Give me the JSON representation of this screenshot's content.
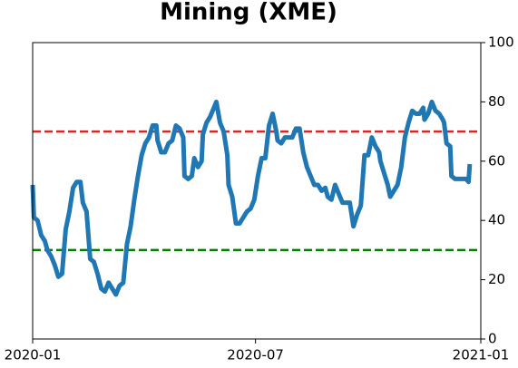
{
  "chart_data": {
    "type": "line",
    "title": "Mining (XME)",
    "x": [
      0,
      1,
      4,
      7,
      10,
      12,
      15,
      18,
      21,
      24,
      27,
      30,
      33,
      36,
      39,
      41,
      44,
      47,
      50,
      53,
      56,
      59,
      62,
      65,
      68,
      71,
      74,
      77,
      80,
      83,
      86,
      89,
      92,
      95,
      98,
      101,
      102,
      105,
      108,
      111,
      114,
      117,
      120,
      123,
      124,
      127,
      130,
      132,
      135,
      138,
      139,
      142,
      145,
      148,
      150,
      153,
      156,
      159,
      160,
      163,
      166,
      169,
      172,
      175,
      178,
      181,
      184,
      187,
      190,
      193,
      196,
      199,
      200,
      203,
      206,
      209,
      212,
      215,
      218,
      221,
      224,
      227,
      230,
      233,
      236,
      239,
      241,
      244,
      247,
      250,
      253,
      256,
      259,
      262,
      265,
      268,
      271,
      274,
      277,
      280,
      283,
      284,
      287,
      290,
      292,
      295,
      298,
      301,
      304,
      307,
      310,
      313,
      316,
      319,
      320,
      323,
      326,
      329,
      332,
      335,
      336,
      338,
      341,
      342,
      345,
      348,
      351,
      354,
      356,
      357
    ],
    "series": [
      {
        "color": "#1f77b4",
        "values": [
          52,
          41,
          40,
          35,
          33,
          30,
          28,
          25,
          21,
          22,
          37,
          43,
          51,
          53,
          53,
          46,
          43,
          27,
          26,
          22,
          17,
          16,
          19,
          17,
          15,
          18,
          19,
          32,
          38,
          47,
          55,
          62,
          66,
          68,
          72,
          72,
          67,
          63,
          63,
          66,
          67,
          72,
          71,
          68,
          55,
          54,
          55,
          61,
          58,
          60,
          69,
          73,
          75,
          78,
          80,
          73,
          70,
          62,
          52,
          48,
          39,
          39,
          41,
          43,
          44,
          47,
          55,
          61,
          61,
          72,
          76,
          70,
          67,
          66,
          68,
          68,
          68,
          71,
          71,
          63,
          58,
          55,
          52,
          52,
          50,
          51,
          48,
          47,
          52,
          49,
          46,
          46,
          46,
          38,
          42,
          45,
          62,
          62,
          68,
          65,
          63,
          60,
          56,
          52,
          48,
          50,
          52,
          58,
          68,
          73,
          77,
          76,
          76,
          78,
          74,
          76,
          80,
          77,
          76,
          74,
          73,
          66,
          65,
          55,
          54,
          54,
          54,
          54,
          53,
          59
        ]
      }
    ],
    "xlim": [
      0,
      366
    ],
    "xticks": [
      {
        "value": 0,
        "label": "2020-01"
      },
      {
        "value": 182,
        "label": "2020-07"
      },
      {
        "value": 366,
        "label": "2021-01"
      }
    ],
    "ylim": [
      0,
      100
    ],
    "yticks": [
      0,
      20,
      40,
      60,
      80,
      100
    ],
    "y_axis_side": "right",
    "hlines": [
      {
        "value": 70,
        "color": "#d62728"
      },
      {
        "value": 30,
        "color": "#008000"
      }
    ]
  }
}
